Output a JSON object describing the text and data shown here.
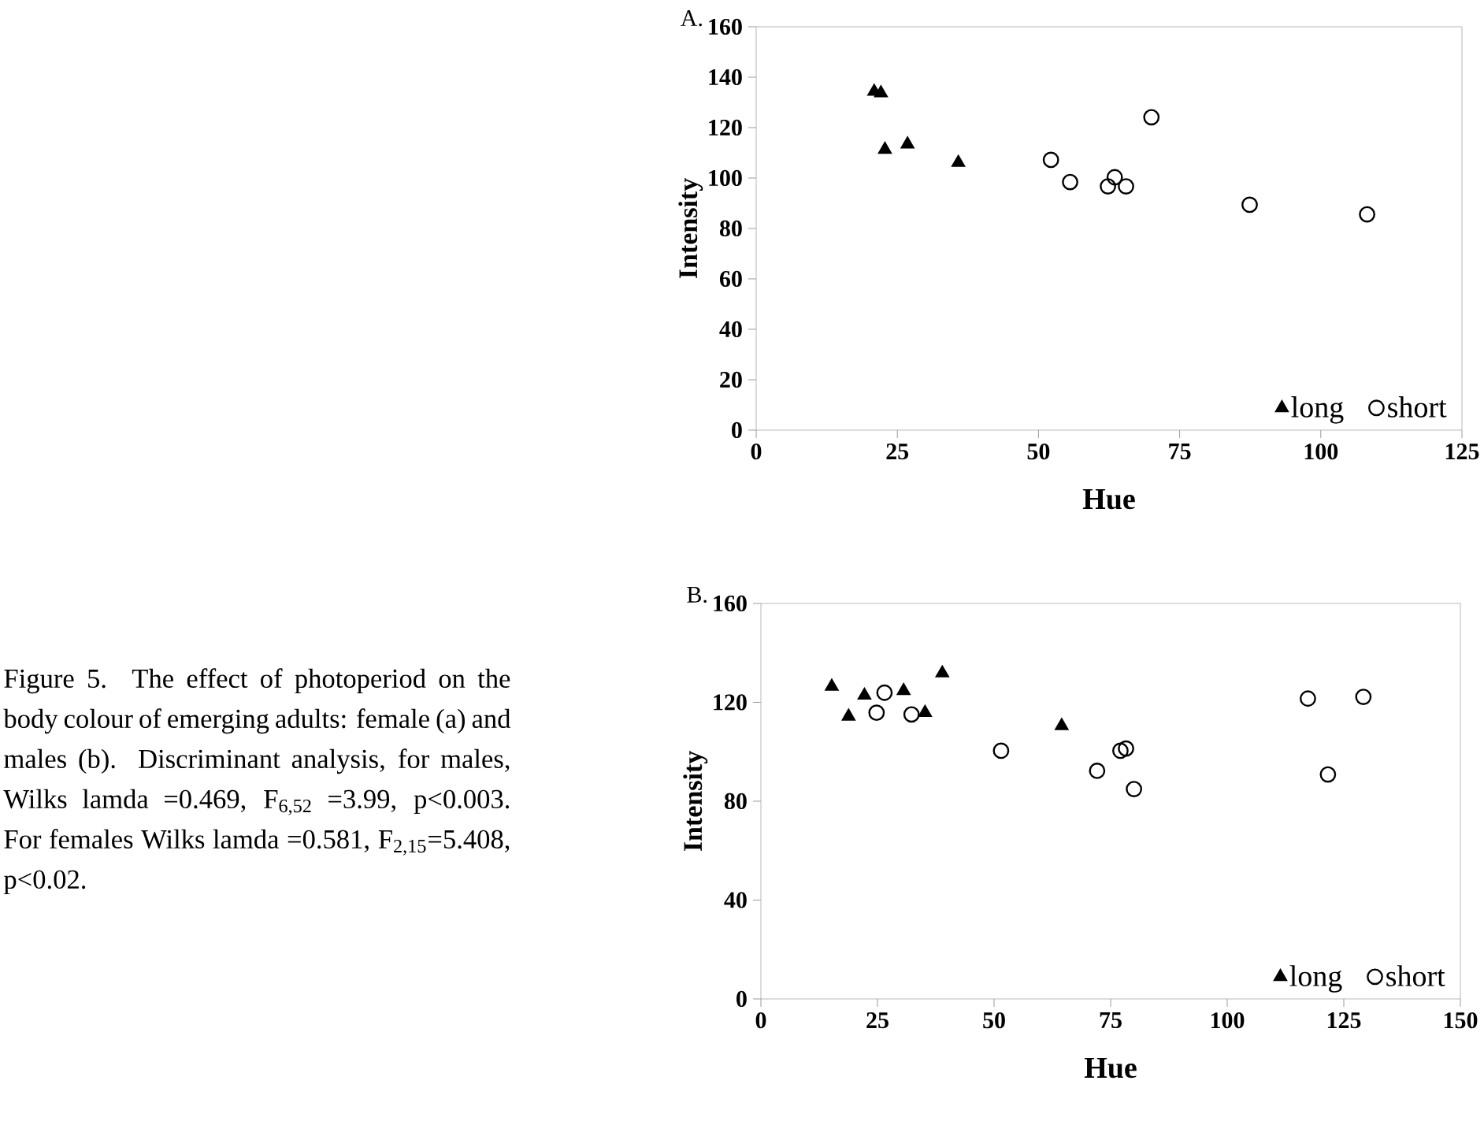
{
  "chart_data": [
    {
      "type": "scatter",
      "title": "A.",
      "xlabel": "Hue",
      "ylabel": "Intensity",
      "xlim": [
        0,
        125
      ],
      "xticks": [
        0,
        25,
        50,
        75,
        100,
        125
      ],
      "ylim": [
        0,
        160
      ],
      "yticks": [
        0,
        20,
        40,
        60,
        80,
        100,
        120,
        140,
        160
      ],
      "legend": "bottom right",
      "grid": false,
      "series": [
        {
          "name": "long",
          "color": "#000000",
          "marker": "triangle",
          "x": [
            20.9,
            22.1,
            22.8,
            26.8,
            35.8
          ],
          "values": [
            134.3,
            133.7,
            111.3,
            113.4,
            106.1
          ]
        },
        {
          "name": "short",
          "color": "#000000",
          "marker": "circle",
          "x": [
            52.2,
            55.6,
            63.5,
            62.3,
            65.5,
            70.0,
            87.4,
            108.2
          ],
          "values": [
            107.2,
            98.4,
            100.3,
            96.7,
            96.7,
            124.1,
            89.4,
            85.6
          ]
        }
      ]
    },
    {
      "type": "scatter",
      "title": "B.",
      "xlabel": "Hue",
      "ylabel": "Intensity",
      "xlim": [
        0,
        150
      ],
      "xticks": [
        0,
        25,
        50,
        75,
        100,
        125,
        150
      ],
      "ylim": [
        0,
        160
      ],
      "yticks": [
        0,
        40,
        80,
        120,
        160
      ],
      "legend": "bottom right",
      "grid": false,
      "annotations": [
        "Figure 5. The effect of photoperiod on the body colour of emerging adults: female (a) and males (b). Discriminant analysis, for males, Wilks lamda =0.469, F$_{6,52}$ =3.99, p<0.003. For females Wilks lamda =0.581, F$_{2,15}$=5.408, p<0.02."
      ],
      "series": [
        {
          "name": "long",
          "color": "#000000",
          "marker": "triangle",
          "x": [
            15.2,
            18.8,
            22.2,
            30.6,
            35.2,
            38.9,
            64.5
          ],
          "values": [
            126.4,
            114.3,
            122.8,
            124.7,
            115.8,
            131.8,
            110.5
          ]
        },
        {
          "name": "short",
          "color": "#000000",
          "marker": "circle",
          "x": [
            26.5,
            24.8,
            32.3,
            51.5,
            72.1,
            77.1,
            78.3,
            80.0,
            117.3,
            121.6,
            129.2
          ],
          "values": [
            123.9,
            115.8,
            115.1,
            100.4,
            92.3,
            100.4,
            101.3,
            84.9,
            121.5,
            90.8,
            122.2
          ]
        }
      ]
    }
  ]
}
